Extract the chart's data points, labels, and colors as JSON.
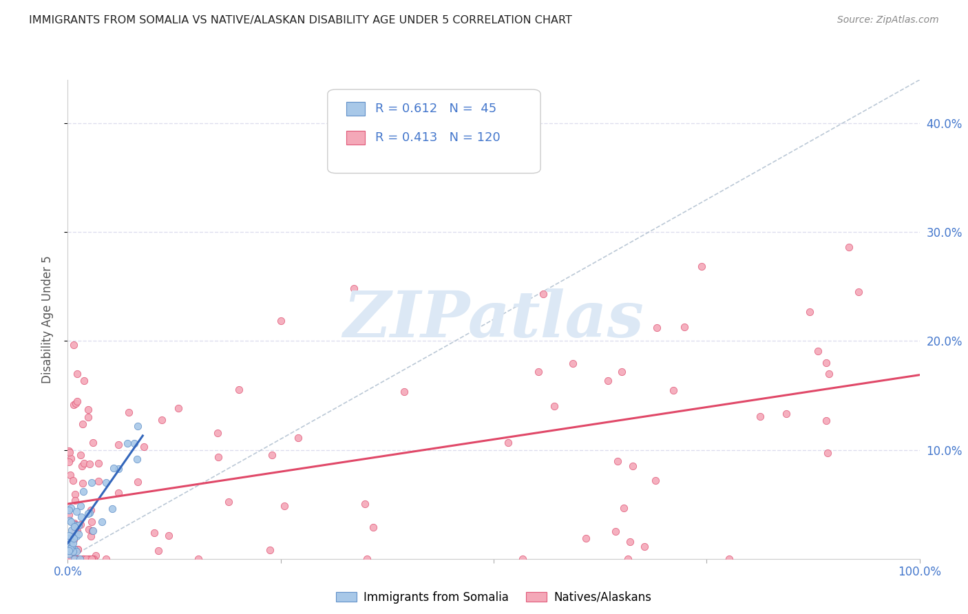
{
  "title": "IMMIGRANTS FROM SOMALIA VS NATIVE/ALASKAN DISABILITY AGE UNDER 5 CORRELATION CHART",
  "source": "Source: ZipAtlas.com",
  "ylabel": "Disability Age Under 5",
  "R_somalia": 0.612,
  "N_somalia": 45,
  "R_native": 0.413,
  "N_native": 120,
  "somalia_color": "#a8c8e8",
  "native_color": "#f4a8b8",
  "somalia_edge_color": "#6090c8",
  "native_edge_color": "#e05878",
  "regression_somalia_color": "#3366bb",
  "regression_native_color": "#e04868",
  "diagonal_color": "#aabbcc",
  "background_color": "#ffffff",
  "grid_color": "#ddddee",
  "title_color": "#222222",
  "axis_label_color": "#4477cc",
  "source_color": "#888888",
  "ylabel_color": "#555555",
  "watermark_text": "ZIPatlas",
  "watermark_color": "#dce8f5",
  "legend_label_somalia": "Immigrants from Somalia",
  "legend_label_native": "Natives/Alaskans",
  "xlim": [
    0.0,
    1.0
  ],
  "ylim": [
    0.0,
    0.44
  ],
  "ytick_vals": [
    0.1,
    0.2,
    0.3,
    0.4
  ],
  "ytick_labels": [
    "10.0%",
    "20.0%",
    "30.0%",
    "40.0%"
  ],
  "xtick_vals": [
    0.0,
    0.25,
    0.5,
    0.75,
    1.0
  ],
  "xtick_labels": [
    "0.0%",
    "",
    "",
    "",
    "100.0%"
  ]
}
